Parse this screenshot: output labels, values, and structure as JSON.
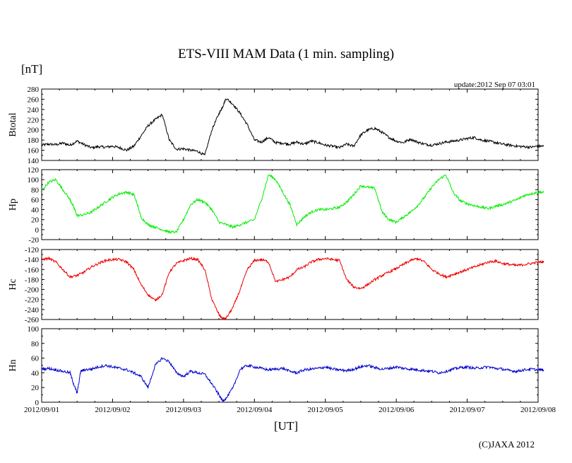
{
  "title": "ETS-VIII MAM Data (1 min. sampling)",
  "unit_label": "[nT]",
  "update_text": "update:2012 Sep 07 03:01",
  "x_axis_label": "[UT]",
  "copyright": "(C)JAXA 2012",
  "colors": {
    "btotal": "#000000",
    "hp": "#00ee00",
    "hc": "#ee0000",
    "hn": "#0000cc"
  },
  "chart_data": {
    "type": "line",
    "x_ticks": [
      "2012/09/01",
      "2012/09/02",
      "2012/09/03",
      "2012/09/04",
      "2012/09/05",
      "2012/09/06",
      "2012/09/07",
      "2012/09/08"
    ],
    "x_range_days": [
      0,
      7
    ],
    "panels": [
      {
        "name": "Btotal",
        "ylabel": "Btotal",
        "ylim": [
          140,
          280
        ],
        "yticks": [
          140,
          160,
          180,
          200,
          220,
          240,
          260,
          280
        ],
        "color_key": "btotal",
        "x": [
          0,
          0.1,
          0.2,
          0.3,
          0.4,
          0.5,
          0.6,
          0.7,
          0.8,
          0.9,
          1.0,
          1.1,
          1.2,
          1.3,
          1.4,
          1.5,
          1.6,
          1.7,
          1.8,
          1.9,
          2.0,
          2.1,
          2.2,
          2.3,
          2.4,
          2.5,
          2.55,
          2.6,
          2.7,
          2.8,
          2.9,
          3.0,
          3.1,
          3.2,
          3.3,
          3.4,
          3.5,
          3.6,
          3.7,
          3.8,
          3.9,
          4.0,
          4.1,
          4.2,
          4.3,
          4.4,
          4.5,
          4.6,
          4.7,
          4.8,
          4.9,
          5.0,
          5.1,
          5.2,
          5.3,
          5.4,
          5.5,
          5.6,
          5.7,
          5.8,
          5.9,
          6.0,
          6.1,
          6.2,
          6.3,
          6.4,
          6.5,
          6.6,
          6.7,
          6.8,
          6.9,
          7.0,
          7.08
        ],
        "values": [
          170,
          172,
          171,
          174,
          170,
          178,
          171,
          165,
          167,
          166,
          168,
          165,
          160,
          168,
          188,
          208,
          220,
          230,
          180,
          162,
          163,
          160,
          158,
          150,
          200,
          232,
          245,
          262,
          250,
          232,
          210,
          180,
          176,
          185,
          175,
          174,
          172,
          176,
          172,
          178,
          175,
          170,
          168,
          165,
          172,
          168,
          190,
          200,
          203,
          195,
          185,
          178,
          175,
          182,
          176,
          172,
          170,
          173,
          176,
          178,
          180,
          183,
          185,
          180,
          178,
          175,
          172,
          170,
          168,
          167,
          166,
          168,
          168
        ]
      },
      {
        "name": "Hp",
        "ylabel": "Hp",
        "ylim": [
          -20,
          120
        ],
        "yticks": [
          -20,
          0,
          20,
          40,
          60,
          80,
          100,
          120
        ],
        "color_key": "hp",
        "x": [
          0,
          0.1,
          0.2,
          0.3,
          0.4,
          0.45,
          0.5,
          0.6,
          0.7,
          0.8,
          0.9,
          1.0,
          1.1,
          1.2,
          1.3,
          1.35,
          1.4,
          1.5,
          1.6,
          1.7,
          1.8,
          1.9,
          2.0,
          2.1,
          2.2,
          2.3,
          2.4,
          2.5,
          2.6,
          2.7,
          2.8,
          2.9,
          3.0,
          3.1,
          3.2,
          3.3,
          3.4,
          3.5,
          3.6,
          3.7,
          3.8,
          3.9,
          4.0,
          4.1,
          4.2,
          4.3,
          4.4,
          4.5,
          4.6,
          4.7,
          4.8,
          4.9,
          5.0,
          5.1,
          5.2,
          5.3,
          5.4,
          5.5,
          5.6,
          5.7,
          5.8,
          5.9,
          6.0,
          6.1,
          6.2,
          6.3,
          6.4,
          6.5,
          6.6,
          6.7,
          6.8,
          6.9,
          7.0,
          7.08
        ],
        "values": [
          78,
          95,
          100,
          80,
          60,
          45,
          28,
          30,
          35,
          45,
          55,
          65,
          72,
          75,
          70,
          50,
          25,
          10,
          5,
          0,
          -5,
          -5,
          20,
          50,
          60,
          55,
          40,
          15,
          10,
          5,
          10,
          15,
          20,
          60,
          110,
          100,
          75,
          50,
          10,
          25,
          35,
          40,
          40,
          42,
          45,
          55,
          70,
          88,
          85,
          82,
          35,
          20,
          15,
          25,
          35,
          48,
          65,
          85,
          100,
          110,
          75,
          58,
          52,
          48,
          45,
          42,
          47,
          50,
          55,
          60,
          68,
          72,
          75,
          75
        ]
      },
      {
        "name": "Hc",
        "ylabel": "Hc",
        "ylim": [
          -260,
          -120
        ],
        "yticks": [
          -260,
          -240,
          -220,
          -200,
          -180,
          -160,
          -140,
          -120
        ],
        "color_key": "hc",
        "x": [
          0,
          0.1,
          0.2,
          0.3,
          0.4,
          0.5,
          0.6,
          0.7,
          0.8,
          0.9,
          1.0,
          1.1,
          1.2,
          1.3,
          1.4,
          1.5,
          1.6,
          1.7,
          1.8,
          1.9,
          2.0,
          2.1,
          2.2,
          2.3,
          2.4,
          2.5,
          2.55,
          2.6,
          2.7,
          2.8,
          2.9,
          3.0,
          3.1,
          3.2,
          3.3,
          3.4,
          3.5,
          3.6,
          3.7,
          3.8,
          3.9,
          4.0,
          4.1,
          4.2,
          4.3,
          4.4,
          4.5,
          4.6,
          4.7,
          4.8,
          4.9,
          5.0,
          5.1,
          5.2,
          5.3,
          5.4,
          5.5,
          5.6,
          5.7,
          5.8,
          5.9,
          6.0,
          6.1,
          6.2,
          6.3,
          6.4,
          6.5,
          6.6,
          6.7,
          6.8,
          6.9,
          7.0,
          7.08
        ],
        "values": [
          -140,
          -138,
          -145,
          -160,
          -175,
          -172,
          -165,
          -155,
          -148,
          -142,
          -140,
          -140,
          -145,
          -160,
          -190,
          -210,
          -222,
          -210,
          -165,
          -148,
          -142,
          -138,
          -140,
          -160,
          -220,
          -250,
          -258,
          -258,
          -235,
          -200,
          -160,
          -142,
          -140,
          -145,
          -185,
          -180,
          -175,
          -160,
          -155,
          -145,
          -140,
          -138,
          -140,
          -142,
          -180,
          -195,
          -198,
          -190,
          -180,
          -172,
          -165,
          -158,
          -150,
          -142,
          -138,
          -145,
          -160,
          -168,
          -175,
          -170,
          -165,
          -160,
          -155,
          -150,
          -145,
          -143,
          -148,
          -150,
          -152,
          -150,
          -148,
          -145,
          -145
        ]
      },
      {
        "name": "Hn",
        "ylabel": "Hn",
        "ylim": [
          0,
          100
        ],
        "yticks": [
          0,
          20,
          40,
          60,
          80,
          100
        ],
        "color_key": "hn",
        "x": [
          0,
          0.1,
          0.2,
          0.3,
          0.4,
          0.45,
          0.5,
          0.55,
          0.6,
          0.7,
          0.8,
          0.9,
          1.0,
          1.1,
          1.2,
          1.3,
          1.4,
          1.5,
          1.6,
          1.7,
          1.8,
          1.9,
          2.0,
          2.1,
          2.2,
          2.3,
          2.4,
          2.5,
          2.55,
          2.6,
          2.7,
          2.8,
          2.9,
          3.0,
          3.1,
          3.2,
          3.3,
          3.4,
          3.5,
          3.6,
          3.7,
          3.8,
          3.9,
          4.0,
          4.1,
          4.2,
          4.3,
          4.4,
          4.5,
          4.6,
          4.7,
          4.8,
          4.9,
          5.0,
          5.1,
          5.2,
          5.3,
          5.4,
          5.5,
          5.6,
          5.7,
          5.8,
          5.9,
          6.0,
          6.1,
          6.2,
          6.3,
          6.4,
          6.5,
          6.6,
          6.7,
          6.8,
          6.9,
          7.0,
          7.08
        ],
        "values": [
          45,
          46,
          44,
          42,
          40,
          25,
          12,
          42,
          44,
          45,
          48,
          50,
          48,
          46,
          44,
          40,
          35,
          20,
          50,
          60,
          55,
          40,
          35,
          42,
          40,
          38,
          25,
          10,
          2,
          5,
          20,
          45,
          50,
          48,
          46,
          44,
          45,
          46,
          42,
          40,
          44,
          45,
          46,
          48,
          45,
          44,
          43,
          45,
          48,
          50,
          47,
          45,
          46,
          48,
          46,
          45,
          44,
          43,
          42,
          40,
          42,
          45,
          47,
          48,
          46,
          47,
          48,
          46,
          45,
          43,
          42,
          44,
          45,
          44,
          44
        ]
      }
    ]
  }
}
